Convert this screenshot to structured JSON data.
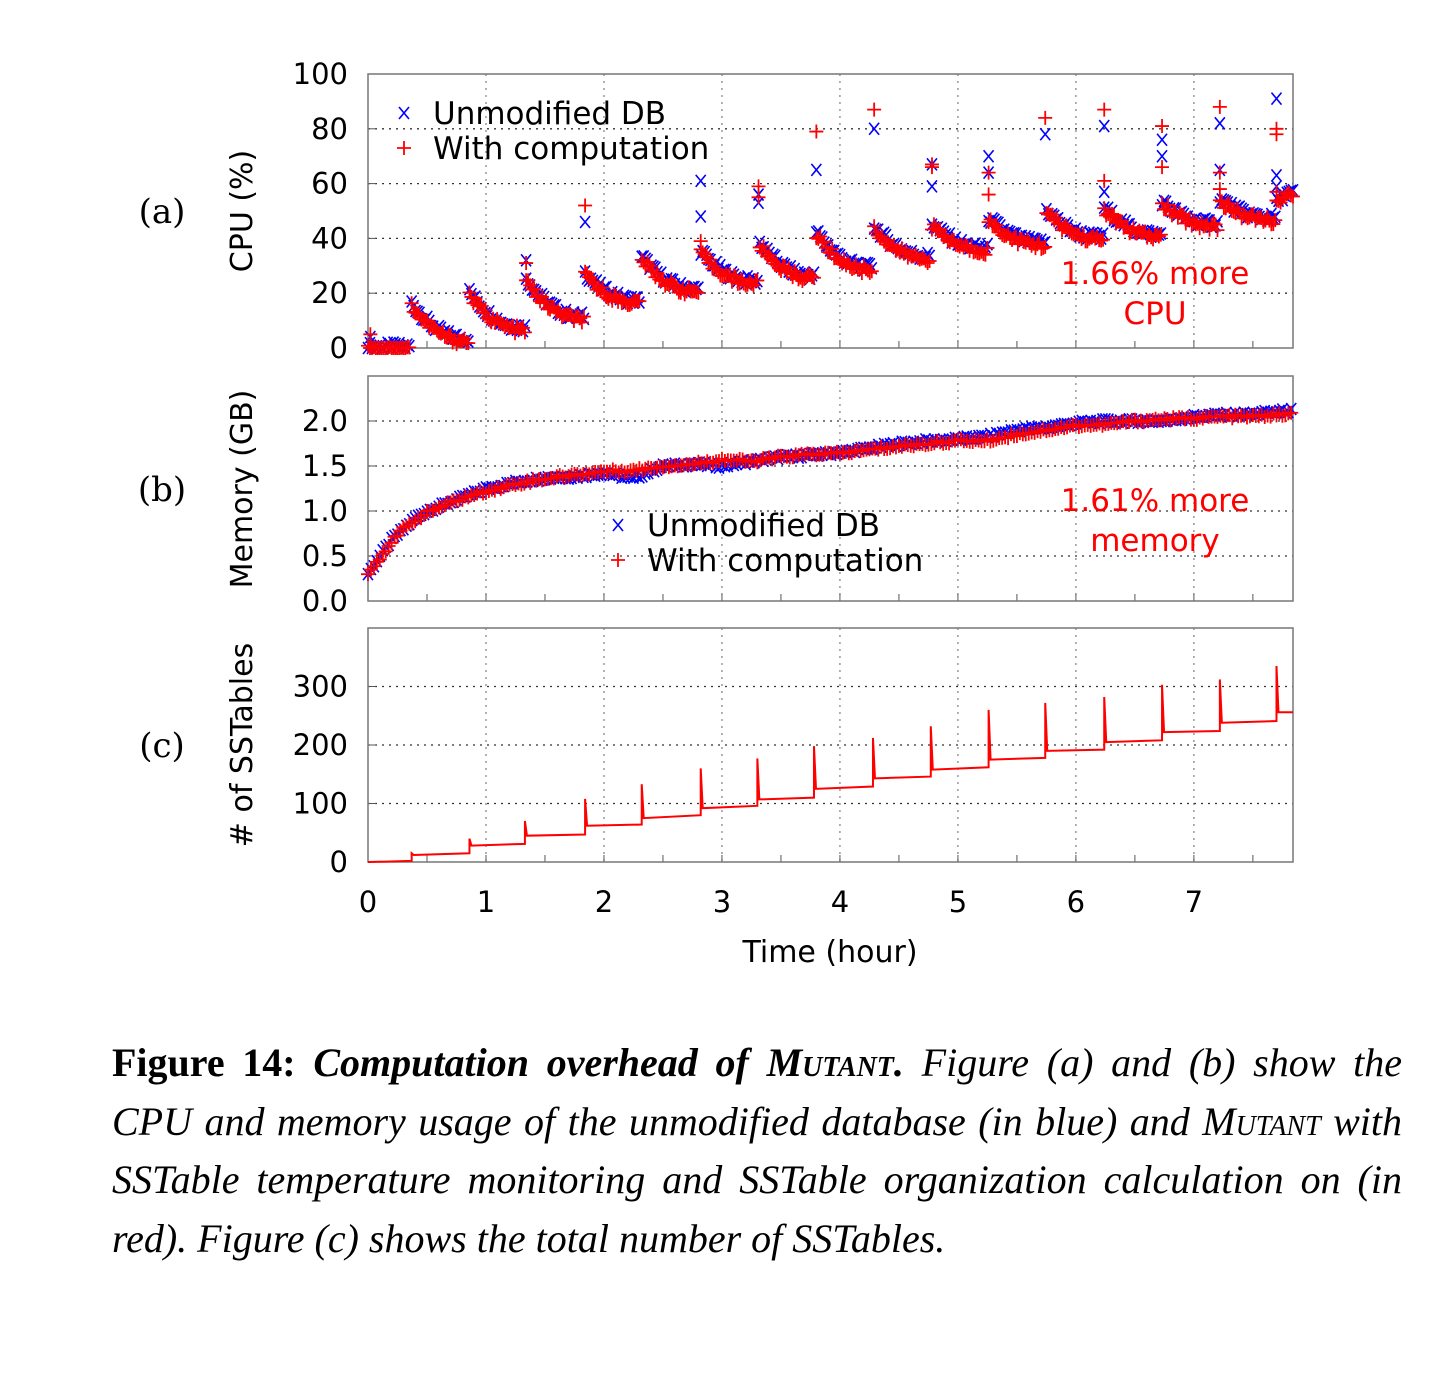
{
  "colors": {
    "unmodified": "#0000ff",
    "with_computation": "#ff0000",
    "grid": "#888888"
  },
  "chart_data": [
    {
      "panel_label": "(a)",
      "type": "scatter",
      "ylabel": "CPU (%)",
      "xlim": [
        0,
        7.84
      ],
      "ylim": [
        0,
        100
      ],
      "yticks": [
        "0",
        "20",
        "40",
        "60",
        "80",
        "100"
      ],
      "grid": true,
      "legend": {
        "placement": "top-left",
        "entries": [
          "Unmodified DB",
          "With computation"
        ]
      },
      "annotation": [
        "1.66% more",
        "CPU"
      ],
      "sawtooth_segments": [
        {
          "t0": 0.0,
          "t1": 0.35,
          "y0": 0,
          "y1": 0
        },
        {
          "t0": 0.37,
          "t1": 0.85,
          "y0": 16,
          "y1": 3
        },
        {
          "t0": 0.86,
          "t1": 1.33,
          "y0": 20,
          "y1": 7
        },
        {
          "t0": 1.34,
          "t1": 1.83,
          "y0": 25,
          "y1": 11
        },
        {
          "t0": 1.84,
          "t1": 2.3,
          "y0": 27,
          "y1": 17
        },
        {
          "t0": 2.32,
          "t1": 2.8,
          "y0": 33,
          "y1": 21
        },
        {
          "t0": 2.82,
          "t1": 3.3,
          "y0": 35,
          "y1": 24
        },
        {
          "t0": 3.32,
          "t1": 3.78,
          "y0": 38,
          "y1": 26
        },
        {
          "t0": 3.8,
          "t1": 4.27,
          "y0": 42,
          "y1": 29
        },
        {
          "t0": 4.29,
          "t1": 4.76,
          "y0": 44,
          "y1": 33
        },
        {
          "t0": 4.78,
          "t1": 5.25,
          "y0": 45,
          "y1": 36
        },
        {
          "t0": 5.26,
          "t1": 5.74,
          "y0": 47,
          "y1": 38
        },
        {
          "t0": 5.75,
          "t1": 6.23,
          "y0": 50,
          "y1": 40
        },
        {
          "t0": 6.24,
          "t1": 6.72,
          "y0": 51,
          "y1": 41
        },
        {
          "t0": 6.73,
          "t1": 7.2,
          "y0": 53,
          "y1": 45
        },
        {
          "t0": 7.22,
          "t1": 7.69,
          "y0": 54,
          "y1": 47
        },
        {
          "t0": 7.7,
          "t1": 7.84,
          "y0": 53,
          "y1": 56
        }
      ],
      "series": [
        {
          "name": "Unmodified DB",
          "marker": "x",
          "outliers": [
            [
              0.02,
              4
            ],
            [
              1.34,
              32
            ],
            [
              1.84,
              46
            ],
            [
              2.82,
              61
            ],
            [
              2.82,
              48
            ],
            [
              3.31,
              56
            ],
            [
              3.31,
              53
            ],
            [
              3.8,
              65
            ],
            [
              4.29,
              80
            ],
            [
              4.78,
              67
            ],
            [
              4.78,
              59
            ],
            [
              5.26,
              70
            ],
            [
              5.26,
              64
            ],
            [
              5.74,
              78
            ],
            [
              6.24,
              81
            ],
            [
              6.24,
              57
            ],
            [
              6.73,
              76
            ],
            [
              6.73,
              70
            ],
            [
              7.22,
              82
            ],
            [
              7.22,
              65
            ],
            [
              7.7,
              91
            ],
            [
              7.7,
              63
            ],
            [
              7.7,
              59
            ]
          ]
        },
        {
          "name": "With computation",
          "marker": "+",
          "outliers": [
            [
              0.02,
              5
            ],
            [
              1.34,
              31
            ],
            [
              1.84,
              52
            ],
            [
              2.82,
              39
            ],
            [
              3.31,
              59
            ],
            [
              3.31,
              55
            ],
            [
              3.8,
              79
            ],
            [
              4.29,
              87
            ],
            [
              4.78,
              67
            ],
            [
              4.78,
              66
            ],
            [
              5.26,
              64
            ],
            [
              5.26,
              56
            ],
            [
              5.74,
              84
            ],
            [
              6.24,
              87
            ],
            [
              6.24,
              61
            ],
            [
              6.73,
              81
            ],
            [
              6.73,
              66
            ],
            [
              7.22,
              88
            ],
            [
              7.22,
              58
            ],
            [
              7.22,
              64
            ],
            [
              7.7,
              80
            ],
            [
              7.7,
              78
            ],
            [
              7.7,
              57
            ]
          ]
        }
      ]
    },
    {
      "panel_label": "(b)",
      "type": "scatter",
      "ylabel": "Memory (GB)",
      "xlim": [
        0,
        7.84
      ],
      "ylim": [
        0,
        2.5
      ],
      "yticks": [
        "0.0",
        "0.5",
        "1.0",
        "1.5",
        "2.0"
      ],
      "grid": true,
      "legend": {
        "placement": "center",
        "entries": [
          "Unmodified DB",
          "With computation"
        ]
      },
      "annotation": [
        "1.61% more",
        "memory"
      ],
      "x": [
        0,
        0.1,
        0.2,
        0.3,
        0.4,
        0.5,
        0.6,
        0.8,
        1.0,
        1.25,
        1.5,
        1.75,
        2.0,
        2.25,
        2.5,
        2.75,
        3.0,
        3.25,
        3.5,
        3.75,
        4.0,
        4.25,
        4.5,
        4.75,
        5.0,
        5.25,
        5.5,
        5.75,
        6.0,
        6.25,
        6.5,
        6.75,
        7.0,
        7.25,
        7.5,
        7.84
      ],
      "series": [
        {
          "name": "Unmodified DB",
          "marker": "x",
          "values": [
            0.3,
            0.5,
            0.68,
            0.8,
            0.92,
            1.0,
            1.05,
            1.15,
            1.25,
            1.32,
            1.37,
            1.38,
            1.42,
            1.36,
            1.5,
            1.52,
            1.5,
            1.55,
            1.6,
            1.62,
            1.65,
            1.7,
            1.75,
            1.78,
            1.8,
            1.83,
            1.9,
            1.93,
            1.98,
            2.0,
            2.0,
            2.0,
            2.05,
            2.07,
            2.08,
            2.12
          ]
        },
        {
          "name": "With computation",
          "marker": "+",
          "values": [
            0.3,
            0.48,
            0.66,
            0.8,
            0.9,
            0.98,
            1.04,
            1.14,
            1.22,
            1.3,
            1.36,
            1.4,
            1.44,
            1.45,
            1.5,
            1.52,
            1.57,
            1.55,
            1.6,
            1.63,
            1.64,
            1.68,
            1.72,
            1.75,
            1.78,
            1.78,
            1.85,
            1.9,
            1.95,
            1.96,
            2.0,
            2.02,
            2.03,
            2.05,
            2.05,
            2.08
          ]
        }
      ]
    },
    {
      "panel_label": "(c)",
      "type": "line",
      "ylabel": "# of SSTables",
      "xlabel": "Time (hour)",
      "xlim": [
        0,
        7.84
      ],
      "ylim": [
        0,
        400
      ],
      "xticks": [
        "0",
        "1",
        "2",
        "3",
        "4",
        "5",
        "6",
        "7"
      ],
      "yticks": [
        "0",
        "100",
        "200",
        "300"
      ],
      "grid": true,
      "steps": [
        {
          "t": 0.0,
          "spike": 0,
          "start": 0,
          "end": 2
        },
        {
          "t": 0.37,
          "spike": 15,
          "start": 12,
          "end": 15
        },
        {
          "t": 0.86,
          "spike": 40,
          "start": 28,
          "end": 31
        },
        {
          "t": 1.33,
          "spike": 70,
          "start": 45,
          "end": 47
        },
        {
          "t": 1.84,
          "spike": 108,
          "start": 62,
          "end": 64
        },
        {
          "t": 2.32,
          "spike": 133,
          "start": 75,
          "end": 80
        },
        {
          "t": 2.82,
          "spike": 160,
          "start": 92,
          "end": 96
        },
        {
          "t": 3.3,
          "spike": 177,
          "start": 107,
          "end": 110
        },
        {
          "t": 3.78,
          "spike": 198,
          "start": 125,
          "end": 129
        },
        {
          "t": 4.28,
          "spike": 212,
          "start": 143,
          "end": 146
        },
        {
          "t": 4.77,
          "spike": 232,
          "start": 158,
          "end": 162
        },
        {
          "t": 5.26,
          "spike": 260,
          "start": 175,
          "end": 178
        },
        {
          "t": 5.74,
          "spike": 272,
          "start": 190,
          "end": 192
        },
        {
          "t": 6.24,
          "spike": 282,
          "start": 205,
          "end": 208
        },
        {
          "t": 6.73,
          "spike": 303,
          "start": 222,
          "end": 224
        },
        {
          "t": 7.22,
          "spike": 312,
          "start": 238,
          "end": 241
        },
        {
          "t": 7.7,
          "spike": 335,
          "start": 256,
          "end": 256
        }
      ]
    }
  ],
  "caption": {
    "label": "Figure 14:",
    "title": "Computation overhead of",
    "title_name": "Mutant.",
    "text_1": " Figure (a) and (b) show the CPU and memory usage of the unmodified database (in blue) and ",
    "name_2": "Mutant",
    "text_2": " with SSTable temperature monitoring and SSTable organization calculation on (in red). Figure (c) shows the total number of SSTables."
  }
}
